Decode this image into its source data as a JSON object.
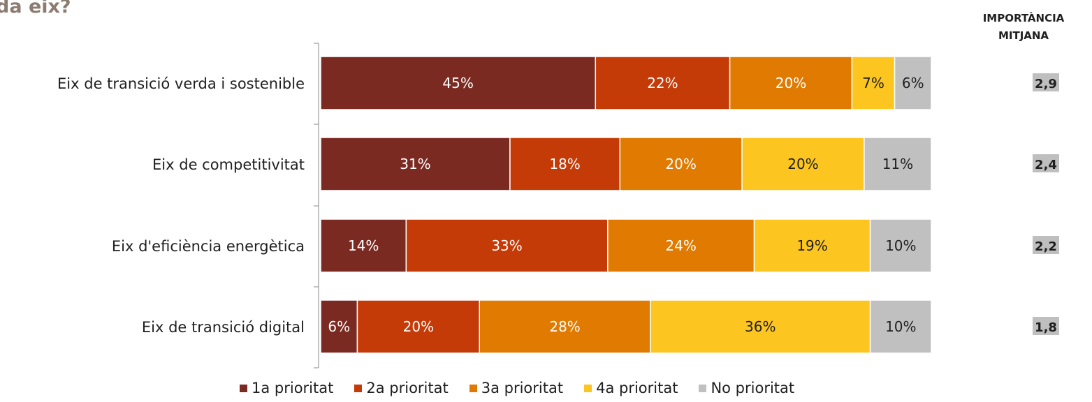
{
  "title_fragment": "da eix?",
  "importance_header_lines": [
    "IMPORTÀNCIA",
    "MITJANA"
  ],
  "legend": [
    {
      "label": "1a prioritat",
      "color": "#7b2a22"
    },
    {
      "label": "2a prioritat",
      "color": "#c43b08"
    },
    {
      "label": "3a prioritat",
      "color": "#e07a00"
    },
    {
      "label": "4a prioritat",
      "color": "#fcc520"
    },
    {
      "label": "No prioritat",
      "color": "#c0c0c0"
    }
  ],
  "chart_data": {
    "type": "bar",
    "orientation": "horizontal",
    "stacked": true,
    "categories": [
      "Eix de transició verda i sostenible",
      "Eix de competitivitat",
      "Eix d'eficiència energètica",
      "Eix de transició digital"
    ],
    "series": [
      {
        "name": "1a prioritat",
        "color": "#7b2a22",
        "label_color": "#ffffff",
        "values": [
          45,
          31,
          14,
          6
        ],
        "labels": [
          "45%",
          "31%",
          "14%",
          "6%"
        ]
      },
      {
        "name": "2a prioritat",
        "color": "#c43b08",
        "label_color": "#ffffff",
        "values": [
          22,
          18,
          33,
          20
        ],
        "labels": [
          "22%",
          "18%",
          "33%",
          "20%"
        ]
      },
      {
        "name": "3a prioritat",
        "color": "#e07a00",
        "label_color": "#ffffff",
        "values": [
          20,
          20,
          24,
          28
        ],
        "labels": [
          "20%",
          "20%",
          "24%",
          "28%"
        ]
      },
      {
        "name": "4a prioritat",
        "color": "#fcc520",
        "label_color": "#1f1f1f",
        "values": [
          7,
          20,
          19,
          36
        ],
        "labels": [
          "7%",
          "20%",
          "19%",
          "36%"
        ]
      },
      {
        "name": "No prioritat",
        "color": "#c0c0c0",
        "label_color": "#1f1f1f",
        "values": [
          6,
          11,
          10,
          10
        ],
        "labels": [
          "6%",
          "11%",
          "10%",
          "10%"
        ]
      }
    ],
    "average_importance": {
      "values": [
        "2,9",
        "2,4",
        "2,2",
        "1,8"
      ],
      "box_color": "#bfbfbf"
    },
    "xlim": [
      0,
      100
    ],
    "grid": false,
    "legend_position": "bottom"
  }
}
